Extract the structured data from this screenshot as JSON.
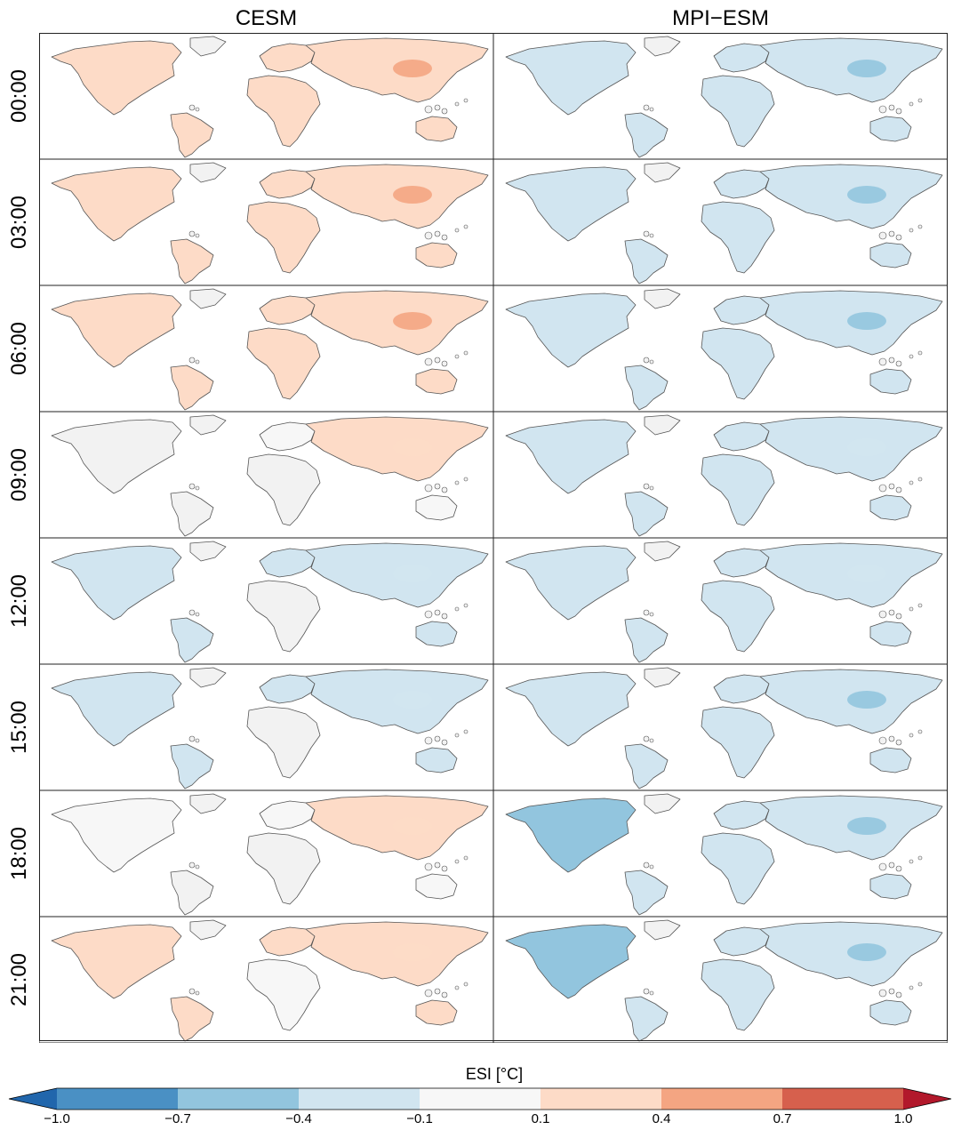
{
  "columns": [
    "CESM",
    "MPI−ESM"
  ],
  "rows": [
    "00:00",
    "03:00",
    "06:00",
    "09:00",
    "12:00",
    "15:00",
    "18:00",
    "21:00"
  ],
  "panels": [
    {
      "model": "CESM",
      "time": "00:00",
      "anomaly": {
        "north_america": 0.25,
        "south_america": 0.2,
        "europe": 0.2,
        "asia": 0.3,
        "east_asia": 0.5,
        "africa": 0.15,
        "australia": 0.2
      }
    },
    {
      "model": "MPI−ESM",
      "time": "00:00",
      "anomaly": {
        "north_america": -0.3,
        "south_america": -0.35,
        "europe": -0.2,
        "asia": -0.3,
        "east_asia": -0.6,
        "africa": -0.2,
        "australia": -0.15
      }
    },
    {
      "model": "CESM",
      "time": "03:00",
      "anomaly": {
        "north_america": 0.3,
        "south_america": 0.3,
        "europe": 0.25,
        "asia": 0.35,
        "east_asia": 0.55,
        "africa": 0.2,
        "australia": 0.3
      }
    },
    {
      "model": "MPI−ESM",
      "time": "03:00",
      "anomaly": {
        "north_america": -0.3,
        "south_america": -0.35,
        "europe": -0.2,
        "asia": -0.3,
        "east_asia": -0.6,
        "africa": -0.2,
        "australia": -0.15
      }
    },
    {
      "model": "CESM",
      "time": "06:00",
      "anomaly": {
        "north_america": 0.3,
        "south_america": 0.2,
        "europe": 0.25,
        "asia": 0.35,
        "east_asia": 0.5,
        "africa": 0.15,
        "australia": 0.3
      }
    },
    {
      "model": "MPI−ESM",
      "time": "06:00",
      "anomaly": {
        "north_america": -0.25,
        "south_america": -0.25,
        "europe": -0.15,
        "asia": -0.2,
        "east_asia": -0.4,
        "africa": -0.15,
        "australia": -0.1
      }
    },
    {
      "model": "CESM",
      "time": "09:00",
      "anomaly": {
        "north_america": 0.05,
        "south_america": 0.05,
        "europe": 0.1,
        "asia": 0.15,
        "east_asia": 0.15,
        "africa": 0.05,
        "australia": 0.1
      }
    },
    {
      "model": "MPI−ESM",
      "time": "09:00",
      "anomaly": {
        "north_america": -0.2,
        "south_america": -0.2,
        "europe": -0.15,
        "asia": -0.2,
        "east_asia": -0.3,
        "africa": -0.1,
        "australia": -0.1
      }
    },
    {
      "model": "CESM",
      "time": "12:00",
      "anomaly": {
        "north_america": -0.15,
        "south_america": -0.1,
        "europe": -0.1,
        "asia": -0.15,
        "east_asia": -0.1,
        "africa": -0.05,
        "australia": -0.2
      }
    },
    {
      "model": "MPI−ESM",
      "time": "12:00",
      "anomaly": {
        "north_america": -0.25,
        "south_america": -0.25,
        "europe": -0.15,
        "asia": -0.2,
        "east_asia": -0.35,
        "africa": -0.1,
        "australia": -0.1
      }
    },
    {
      "model": "CESM",
      "time": "15:00",
      "anomaly": {
        "north_america": -0.15,
        "south_america": -0.1,
        "europe": -0.1,
        "asia": -0.15,
        "east_asia": -0.1,
        "africa": -0.05,
        "australia": -0.15
      }
    },
    {
      "model": "MPI−ESM",
      "time": "15:00",
      "anomaly": {
        "north_america": -0.3,
        "south_america": -0.3,
        "europe": -0.2,
        "asia": -0.25,
        "east_asia": -0.5,
        "africa": -0.2,
        "australia": -0.15
      }
    },
    {
      "model": "CESM",
      "time": "18:00",
      "anomaly": {
        "north_america": 0.1,
        "south_america": 0.05,
        "europe": 0.1,
        "asia": 0.15,
        "east_asia": 0.15,
        "africa": 0.05,
        "australia": 0.1
      }
    },
    {
      "model": "MPI−ESM",
      "time": "18:00",
      "anomaly": {
        "north_america": -0.4,
        "south_america": -0.35,
        "europe": -0.2,
        "asia": -0.3,
        "east_asia": -0.6,
        "africa": -0.2,
        "australia": -0.15
      }
    },
    {
      "model": "CESM",
      "time": "21:00",
      "anomaly": {
        "north_america": 0.2,
        "south_america": 0.15,
        "europe": 0.2,
        "asia": 0.25,
        "east_asia": 0.3,
        "africa": 0.1,
        "australia": 0.15
      }
    },
    {
      "model": "MPI−ESM",
      "time": "21:00",
      "anomaly": {
        "north_america": -0.4,
        "south_america": -0.35,
        "europe": -0.2,
        "asia": -0.3,
        "east_asia": -0.6,
        "africa": -0.2,
        "australia": -0.15
      }
    }
  ],
  "colorbar": {
    "title": "ESI [°C]",
    "ticks": [
      "−1.0",
      "−0.7",
      "−0.4",
      "−0.1",
      "0.1",
      "0.4",
      "0.7",
      "1.0"
    ],
    "boundaries": [
      -1.0,
      -0.7,
      -0.4,
      -0.1,
      0.1,
      0.4,
      0.7,
      1.0
    ],
    "colors": [
      "#4a90c4",
      "#92c5de",
      "#d1e5f0",
      "#f7f7f7",
      "#fddbc7",
      "#f4a582",
      "#d6604d"
    ],
    "extend_low_color": "#2166ac",
    "extend_high_color": "#b2182b"
  },
  "colors": {
    "land_neutral": "#f2f2f2",
    "coastline": "#555555",
    "frame": "#222222"
  }
}
